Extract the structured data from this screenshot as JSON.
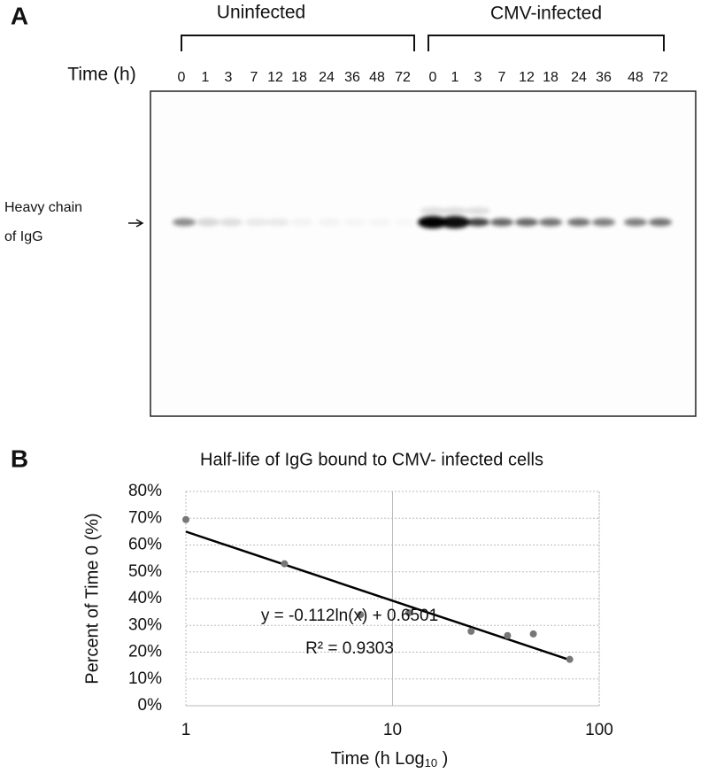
{
  "panel_a": {
    "label": "A",
    "groups": [
      "Uninfected",
      "CMV-infected"
    ],
    "time_label": "Time (h)",
    "lanes": [
      [
        0,
        1,
        3,
        7,
        12,
        18,
        24,
        36,
        48,
        72
      ],
      [
        0,
        1,
        3,
        7,
        12,
        18,
        24,
        36,
        48,
        72
      ]
    ],
    "band_label": [
      "Heavy chain",
      "of IgG"
    ]
  },
  "panel_b_label": "B",
  "chart_data": {
    "type": "scatter",
    "title": "Half-life of IgG bound to CMV- infected cells",
    "xlabel": [
      "Time (h Log",
      "10",
      " )"
    ],
    "ylabel": "Percent of Time 0 (%)",
    "x": [
      1,
      3,
      7,
      12,
      24,
      36,
      48,
      72
    ],
    "values": [
      69.5,
      53,
      34,
      34.7,
      27.8,
      26.2,
      26.8,
      17.3
    ],
    "color": "#777777",
    "xlim": [
      1,
      100
    ],
    "xticks": [
      1,
      10,
      100
    ],
    "xscale": "log",
    "ylim": [
      0,
      80
    ],
    "yticks": [
      {
        "value": 0,
        "label": "0%"
      },
      {
        "value": 10,
        "label": "10%"
      },
      {
        "value": 20,
        "label": "20%"
      },
      {
        "value": 30,
        "label": "30%"
      },
      {
        "value": 40,
        "label": "40%"
      },
      {
        "value": 50,
        "label": "50%"
      },
      {
        "value": 60,
        "label": "60%"
      },
      {
        "value": 70,
        "label": "70%"
      },
      {
        "value": 80,
        "label": "80%"
      }
    ],
    "grid": true,
    "trendline": {
      "x": [
        1,
        72
      ],
      "values": [
        65.0,
        17.1
      ],
      "color": "#000000",
      "equation": "y = -0.112ln(x) + 0.6501",
      "r_squared": "R² = 0.9303"
    }
  }
}
